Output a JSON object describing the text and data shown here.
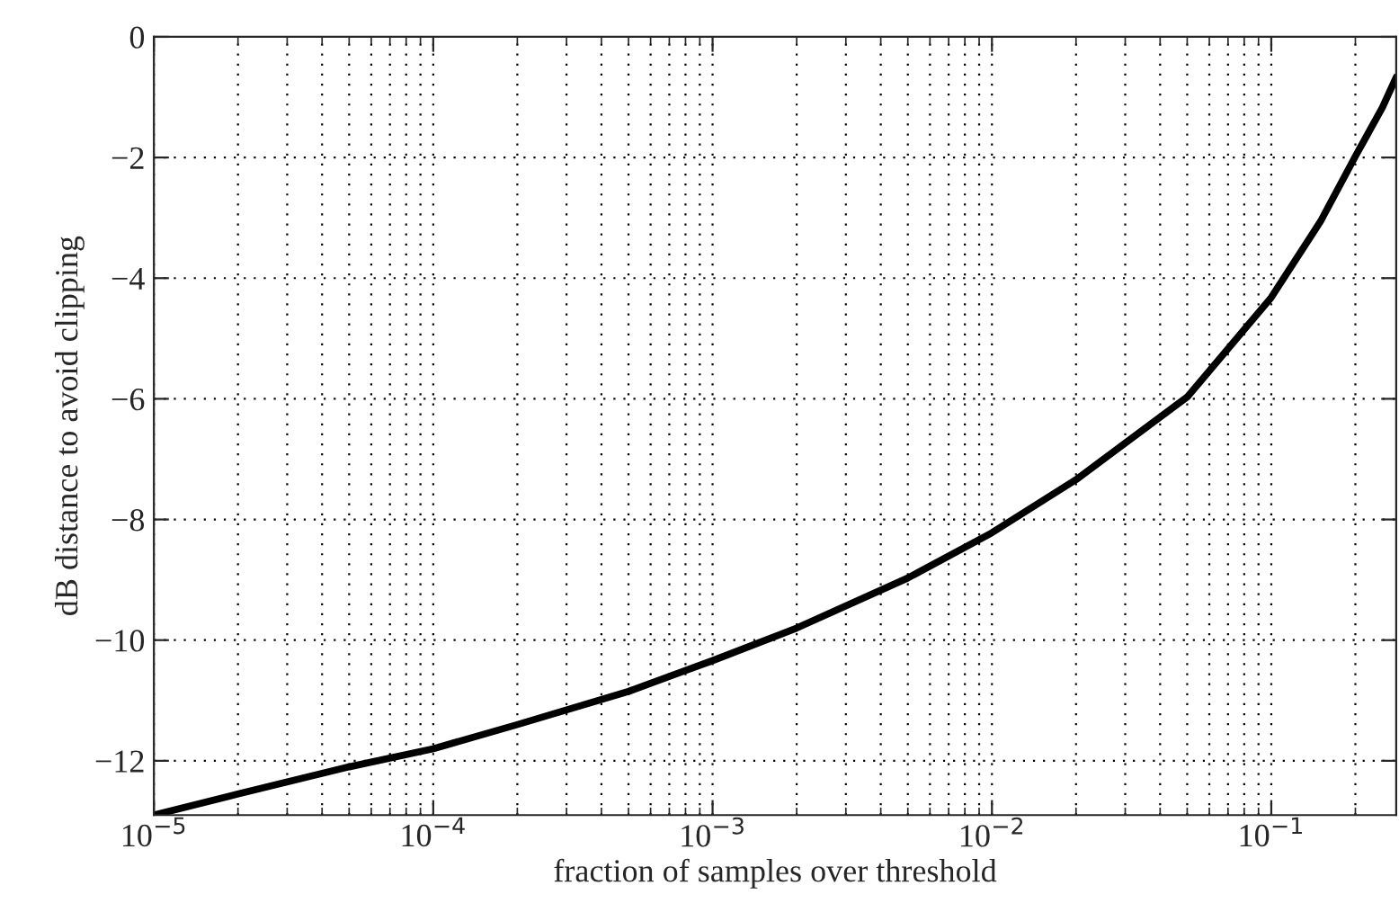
{
  "chart_data": {
    "type": "line",
    "xlabel": "fraction of samples over threshold",
    "ylabel": "dB distance to avoid clipping",
    "log": "x",
    "x": [
      1e-05,
      2e-05,
      5e-05,
      0.0001,
      0.0002,
      0.0005,
      0.001,
      0.002,
      0.005,
      0.01,
      0.02,
      0.05,
      0.1,
      0.15,
      0.2,
      0.25,
      0.28
    ],
    "series": [
      {
        "color": "#000000",
        "values": [
          -12.9,
          -12.55,
          -12.1,
          -11.8,
          -11.4,
          -10.85,
          -10.34,
          -9.8,
          -8.97,
          -8.22,
          -7.34,
          -5.97,
          -4.32,
          -3.06,
          -1.98,
          -1.17,
          -0.67
        ]
      }
    ],
    "xlim": [
      1e-05,
      0.28
    ],
    "ylim": [
      -12.9,
      0
    ],
    "xticks": [
      {
        "value": 1e-05,
        "label": "10$^{−5}$"
      },
      {
        "value": 0.0001,
        "label": "10$^{−4}$"
      },
      {
        "value": 0.001,
        "label": "10$^{−3}$"
      },
      {
        "value": 0.01,
        "label": "10$^{−2}$"
      },
      {
        "value": 0.1,
        "label": "10$^{−1}$"
      }
    ],
    "yticks": [
      0,
      -2,
      -4,
      -6,
      -8,
      -10,
      -12
    ],
    "grid": true,
    "line_style": "solid",
    "marker": "none"
  }
}
